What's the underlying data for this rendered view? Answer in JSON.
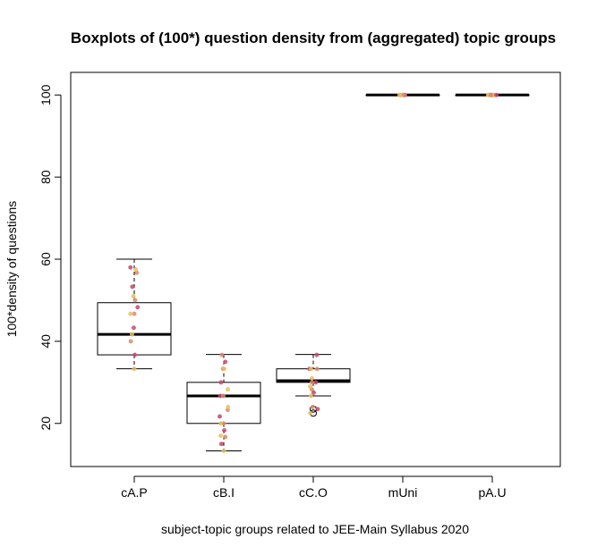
{
  "chart_data": {
    "type": "boxplot",
    "title": "Boxplots of (100*) question density from (aggregated) topic groups",
    "xlabel": "subject-topic groups related to JEE-Main Syllabus 2020",
    "ylabel": "100*density of questions",
    "ylim": [
      9.5,
      105.5
    ],
    "yticks": [
      20,
      40,
      60,
      80,
      100
    ],
    "grid": false,
    "box_color": "#000000",
    "point_colors": [
      "#E8C15E",
      "#C84A6B",
      "#D98C70"
    ],
    "categories": [
      "cA.P",
      "cB.I",
      "cC.O",
      "mUni",
      "pA.U"
    ],
    "boxes": [
      {
        "name": "cA.P",
        "whisker_low": 33.3,
        "q1": 36.7,
        "median": 41.7,
        "q3": 49.4,
        "whisker_high": 60.0,
        "outliers": []
      },
      {
        "name": "cB.I",
        "whisker_low": 13.3,
        "q1": 20.0,
        "median": 26.7,
        "q3": 30.0,
        "whisker_high": 36.8,
        "outliers": []
      },
      {
        "name": "cC.O",
        "whisker_low": 26.7,
        "q1": 30.0,
        "median": 30.4,
        "q3": 33.3,
        "whisker_high": 36.8,
        "outliers": [
          22.5,
          23.5
        ]
      },
      {
        "name": "mUni",
        "whisker_low": 100,
        "q1": 100,
        "median": 100,
        "q3": 100,
        "whisker_high": 100,
        "outliers": []
      },
      {
        "name": "pA.U",
        "whisker_low": 100,
        "q1": 100,
        "median": 100,
        "q3": 100,
        "whisker_high": 100,
        "outliers": []
      }
    ],
    "points": [
      {
        "group": 0,
        "values": [
          33.3,
          36.7,
          40.0,
          41.7,
          43.3,
          46.7,
          46.7,
          48.3,
          50.0,
          51.0,
          53.3,
          56.7,
          57.5,
          58.0
        ]
      },
      {
        "group": 1,
        "values": [
          13.3,
          15.0,
          16.7,
          17.0,
          18.3,
          20.0,
          20.0,
          21.7,
          23.3,
          24.0,
          26.7,
          26.7,
          28.3,
          30.0,
          33.3,
          33.3,
          35.0,
          36.7
        ]
      },
      {
        "group": 2,
        "values": [
          22.5,
          23.5,
          24.0,
          26.7,
          27.5,
          28.3,
          29.0,
          30.0,
          30.0,
          31.0,
          33.3,
          33.3,
          33.3,
          36.7
        ]
      },
      {
        "group": 3,
        "values": [
          100,
          100,
          100,
          100,
          100,
          100,
          100
        ]
      },
      {
        "group": 4,
        "values": [
          100,
          100,
          100,
          100,
          100,
          100,
          100,
          100,
          100
        ]
      }
    ]
  }
}
